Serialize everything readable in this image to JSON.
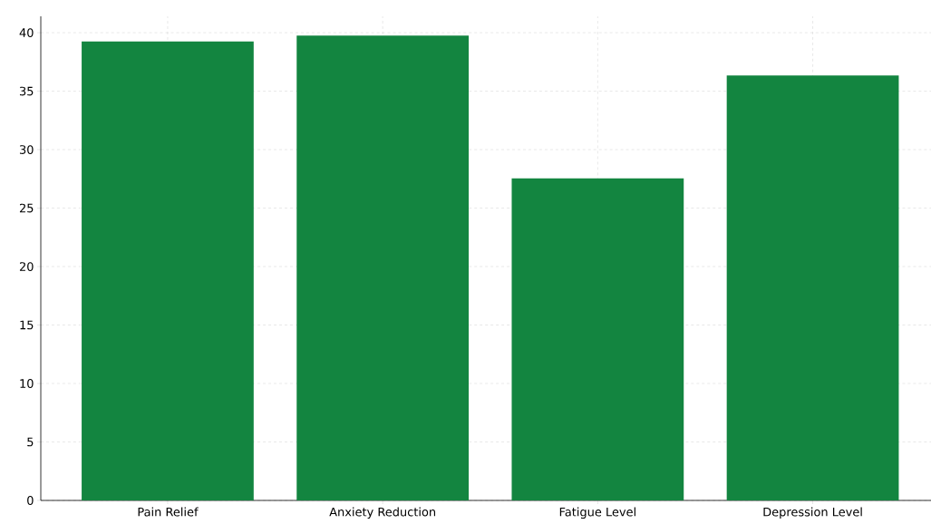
{
  "chart_data": {
    "type": "bar",
    "categories": [
      "Pain Relief",
      "Anxiety Reduction",
      "Fatigue Level",
      "Depression Level"
    ],
    "values": [
      39.25,
      39.75,
      27.55,
      36.35
    ],
    "color": "#138540",
    "ylim": [
      0,
      41.4
    ],
    "yticks": [
      0,
      5,
      10,
      15,
      20,
      25,
      30,
      35,
      40
    ],
    "grid": true
  }
}
